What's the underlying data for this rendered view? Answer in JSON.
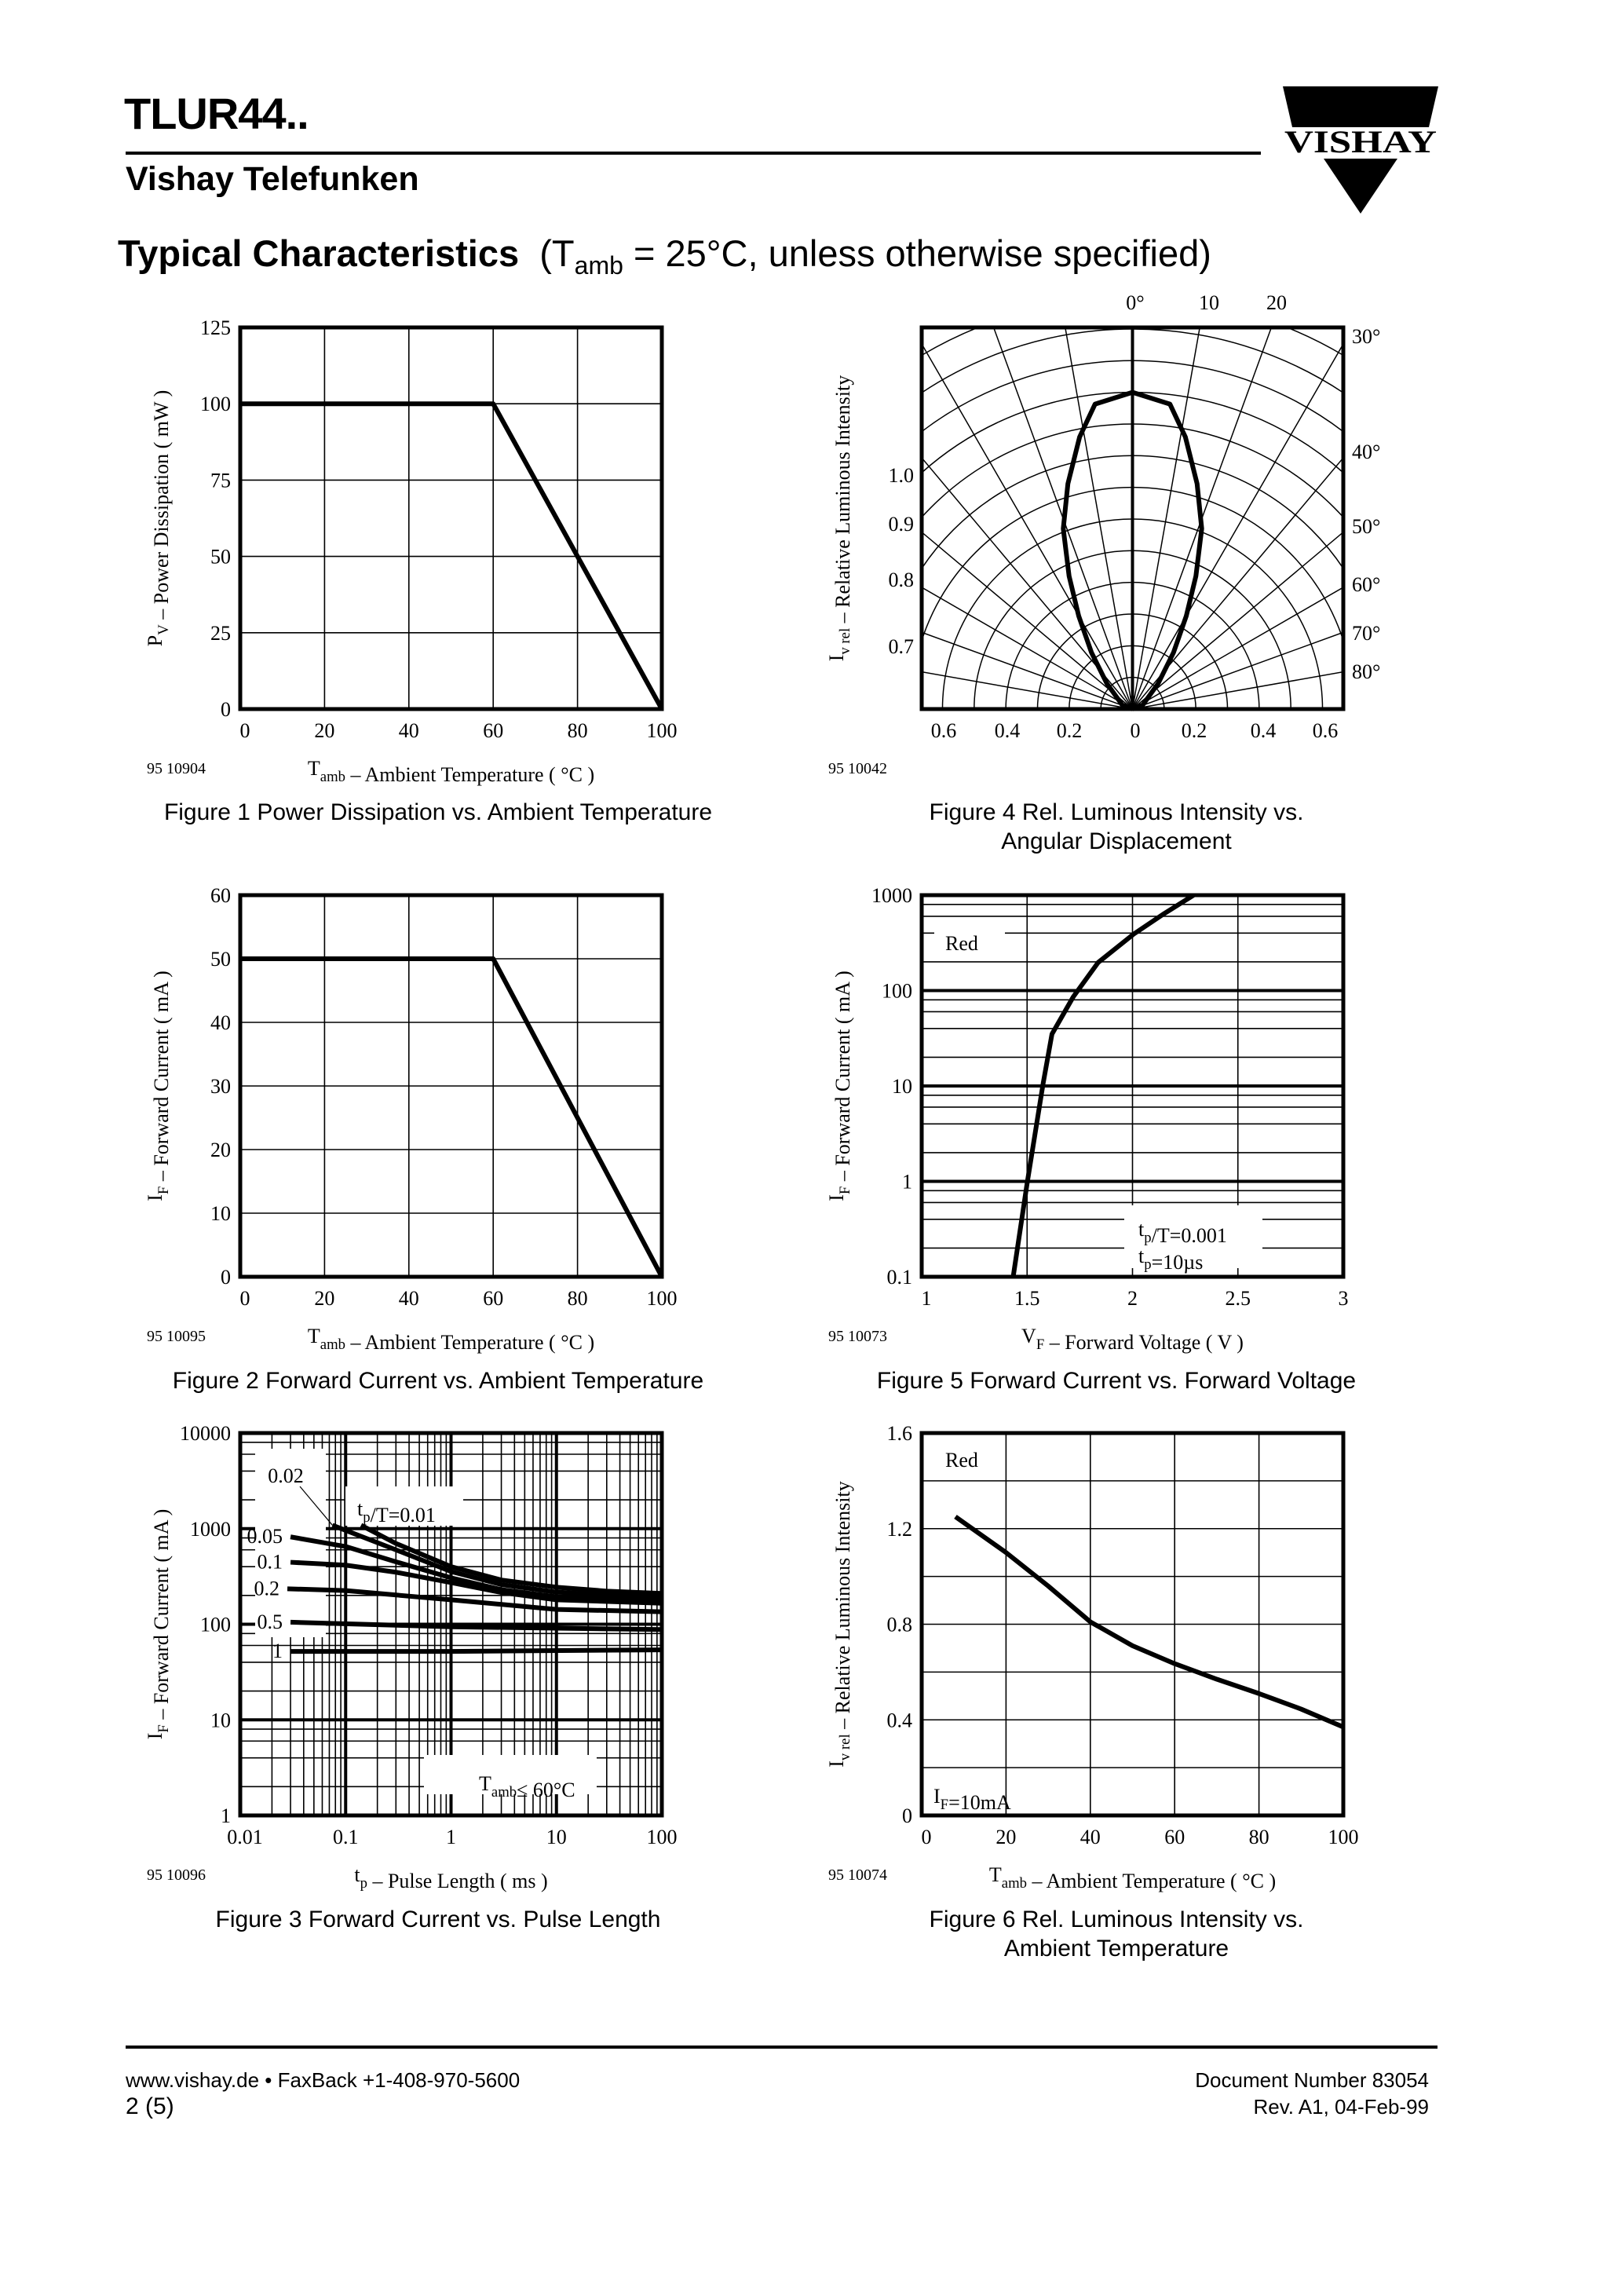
{
  "header": {
    "title": "TLUR44..",
    "company": "Vishay Telefunken",
    "logo_text": "VISHAY",
    "section_title": "Typical Characteristics",
    "section_condition_pre": "(T",
    "section_condition_sub": "amb",
    "section_condition_post": " = 25°C, unless otherwise specified)"
  },
  "captions": {
    "fig1": "Figure 1 Power Dissipation  vs. Ambient Temperature",
    "fig2": "Figure 2 Forward Current vs. Ambient Temperature",
    "fig3": "Figure 3 Forward Current vs. Pulse Length",
    "fig4_line1": "Figure 4 Rel. Luminous Intensity vs.",
    "fig4_line2": "Angular Displacement",
    "fig5": "Figure 5 Forward Current vs. Forward Voltage",
    "fig6_line1": "Figure 6 Rel. Luminous Intensity vs.",
    "fig6_line2": "Ambient Temperature"
  },
  "footer": {
    "website": "www.vishay.de • FaxBack +1-408-970-5600",
    "page": "2 (5)",
    "doc_number": "Document Number 83054",
    "revision": "Rev. A1, 04-Feb-99"
  },
  "chart_data": [
    {
      "type": "line",
      "figure_id": "95 10904",
      "xscale": "linear",
      "yscale": "linear",
      "xlim": [
        0,
        100
      ],
      "ylim": [
        0,
        125
      ],
      "xticks": [
        0,
        20,
        40,
        60,
        80,
        100
      ],
      "xtick_labels": [
        "0",
        "20",
        "40",
        "60",
        "80",
        "100"
      ],
      "yticks": [
        0,
        25,
        50,
        75,
        100,
        125
      ],
      "ytick_labels": [
        "0",
        "25",
        "50",
        "75",
        "100",
        "125"
      ],
      "grid": true,
      "xlabel": [
        {
          "text": "T"
        },
        {
          "text": "amb",
          "sub": true
        },
        {
          "text": " – Ambient Temperature ( °C )"
        }
      ],
      "ylabel": [
        {
          "text": "P"
        },
        {
          "text": "V",
          "sub": true
        },
        {
          "text": " – Power Dissipation ( mW )"
        }
      ],
      "series": [
        {
          "x": [
            0,
            60,
            100
          ],
          "y": [
            100,
            100,
            0
          ]
        }
      ]
    },
    {
      "type": "line",
      "figure_id": "95 10095",
      "xscale": "linear",
      "yscale": "linear",
      "xlim": [
        0,
        100
      ],
      "ylim": [
        0,
        60
      ],
      "xticks": [
        0,
        20,
        40,
        60,
        80,
        100
      ],
      "xtick_labels": [
        "0",
        "20",
        "40",
        "60",
        "80",
        "100"
      ],
      "yticks": [
        0,
        10,
        20,
        30,
        40,
        50,
        60
      ],
      "ytick_labels": [
        "0",
        "10",
        "20",
        "30",
        "40",
        "50",
        "60"
      ],
      "grid": true,
      "xlabel": [
        {
          "text": "T"
        },
        {
          "text": "amb",
          "sub": true
        },
        {
          "text": " – Ambient Temperature ( °C )"
        }
      ],
      "ylabel": [
        {
          "text": "I"
        },
        {
          "text": "F",
          "sub": true
        },
        {
          "text": " – Forward Current ( mA )"
        }
      ],
      "series": [
        {
          "x": [
            0,
            60,
            100
          ],
          "y": [
            50,
            50,
            0
          ]
        }
      ]
    },
    {
      "type": "line",
      "figure_id": "95 10096",
      "xscale": "log",
      "yscale": "log",
      "xlim": [
        0.01,
        100
      ],
      "ylim": [
        1,
        10000
      ],
      "xticks": [
        0.01,
        0.1,
        1,
        10,
        100
      ],
      "xtick_labels": [
        "0.01",
        "0.1",
        "1",
        "10",
        "100"
      ],
      "yticks": [
        1,
        10,
        100,
        1000,
        10000
      ],
      "ytick_labels": [
        "1",
        "10",
        "100",
        "1000",
        "10000"
      ],
      "grid": true,
      "xlabel": [
        {
          "text": "t"
        },
        {
          "text": "p",
          "sub": true
        },
        {
          "text": " – Pulse Length ( ms )"
        }
      ],
      "ylabel": [
        {
          "text": "I"
        },
        {
          "text": "F",
          "sub": true
        },
        {
          "text": " – Forward Current ( mA )"
        }
      ],
      "annotations": [
        [
          {
            "text": "t"
          },
          {
            "text": "p",
            "sub": true
          },
          {
            "text": "/T=0.01"
          }
        ],
        [
          {
            "text": "T"
          },
          {
            "text": "amb",
            "sub": true
          },
          {
            "text": "≤ 60°C"
          }
        ]
      ],
      "series": [
        {
          "x": [
            0.14,
            0.3,
            1,
            3,
            10,
            30,
            100
          ],
          "y": [
            1085,
            700,
            400,
            290,
            244,
            222,
            210
          ]
        },
        {
          "name": "0.02",
          "x": [
            0.075,
            0.3,
            1,
            3,
            10,
            30,
            100
          ],
          "y": [
            1085,
            600,
            356,
            260,
            217,
            202,
            194
          ]
        },
        {
          "name": "0.05",
          "x": [
            0.03,
            0.1,
            0.3,
            1,
            3,
            10,
            100
          ],
          "y": [
            820,
            650,
            450,
            306,
            230,
            194,
            180
          ]
        },
        {
          "name": "0.1",
          "x": [
            0.03,
            0.1,
            0.3,
            1,
            3,
            10,
            100
          ],
          "y": [
            445,
            415,
            350,
            273,
            215,
            180,
            166
          ]
        },
        {
          "name": "0.2",
          "x": [
            0.028,
            0.1,
            1,
            10,
            100
          ],
          "y": [
            235,
            225,
            180,
            143,
            135
          ]
        },
        {
          "name": "0.5",
          "x": [
            0.03,
            1,
            100
          ],
          "y": [
            105,
            94,
            88
          ]
        },
        {
          "name": "1",
          "x": [
            0.03,
            1,
            100
          ],
          "y": [
            52,
            52,
            54
          ]
        }
      ]
    },
    {
      "type": "polar",
      "figure_id": "95 10042",
      "ylabel": [
        {
          "text": "I"
        },
        {
          "text": "v rel",
          "sub": true
        },
        {
          "text": "  – Relative Luminous Intensity"
        }
      ],
      "angle_labels_top": [
        "0°",
        "10",
        "20"
      ],
      "angle_labels_right": [
        "30°",
        "40°",
        "50°",
        "60°",
        "70°",
        "80°"
      ],
      "intensity_labels_left": [
        "1.0",
        "0.9",
        "0.8",
        "0.7"
      ],
      "radius_labels_bottom": [
        "0.6",
        "0.4",
        "0.2",
        "0",
        "0.2",
        "0.4",
        "0.6"
      ],
      "angle_deg": [
        0,
        7,
        11,
        16,
        21,
        25.5,
        30,
        36,
        45,
        68,
        90
      ],
      "relative_intensity": [
        1.0,
        0.97,
        0.875,
        0.74,
        0.61,
        0.465,
        0.34,
        0.22,
        0.115,
        0.035,
        0
      ],
      "symmetric": true
    },
    {
      "type": "line",
      "figure_id": "95 10073",
      "xscale": "linear",
      "yscale": "log",
      "xlim": [
        1,
        3
      ],
      "ylim": [
        0.1,
        1000
      ],
      "xticks": [
        1,
        1.5,
        2,
        2.5,
        3
      ],
      "xtick_labels": [
        "1",
        "1.5",
        "2",
        "2.5",
        "3"
      ],
      "yticks": [
        0.1,
        1,
        10,
        100,
        1000
      ],
      "ytick_labels": [
        "0.1",
        "1",
        "10",
        "100",
        "1000"
      ],
      "grid": true,
      "xlabel": [
        {
          "text": "V"
        },
        {
          "text": "F",
          "sub": true
        },
        {
          "text": " – Forward Voltage ( V )"
        }
      ],
      "ylabel": [
        {
          "text": "I"
        },
        {
          "text": "F",
          "sub": true
        },
        {
          "text": " – Forward Current ( mA )"
        }
      ],
      "annotations": [
        [
          {
            "text": "Red"
          }
        ],
        [
          {
            "text": "t"
          },
          {
            "text": "p",
            "sub": true
          },
          {
            "text": "/T=0.001"
          }
        ],
        [
          {
            "text": "t"
          },
          {
            "text": "p",
            "sub": true
          },
          {
            "text": "=10µs"
          }
        ]
      ],
      "series": [
        {
          "x": [
            1.434,
            1.5,
            1.576,
            1.618,
            1.719,
            1.837,
            2.005,
            2.15,
            2.29
          ],
          "y": [
            0.1,
            0.95,
            10.6,
            35,
            86,
            197,
            390,
            640,
            1000
          ]
        }
      ]
    },
    {
      "type": "line",
      "figure_id": "95 10074",
      "xscale": "linear",
      "yscale": "linear",
      "xlim": [
        0,
        100
      ],
      "ylim": [
        0,
        1.6
      ],
      "xticks": [
        0,
        20,
        40,
        60,
        80,
        100
      ],
      "xtick_labels": [
        "0",
        "20",
        "40",
        "60",
        "80",
        "100"
      ],
      "yticks": [
        0,
        0.4,
        0.8,
        1.2,
        1.6
      ],
      "ytick_labels": [
        "0",
        "0.4",
        "0.8",
        "1.2",
        "1.6"
      ],
      "grid": true,
      "xlabel": [
        {
          "text": "T"
        },
        {
          "text": "amb",
          "sub": true
        },
        {
          "text": " – Ambient Temperature ( °C )"
        }
      ],
      "ylabel": [
        {
          "text": "I"
        },
        {
          "text": "v rel",
          "sub": true
        },
        {
          "text": "  – Relative Luminous Intensity"
        }
      ],
      "annotations": [
        [
          {
            "text": "Red"
          }
        ],
        [
          {
            "text": "I"
          },
          {
            "text": "F",
            "sub": true
          },
          {
            "text": "=10mA"
          }
        ]
      ],
      "series": [
        {
          "x": [
            8,
            20,
            30,
            40,
            50,
            60,
            70,
            80,
            90,
            100
          ],
          "y": [
            1.25,
            1.1,
            0.96,
            0.81,
            0.71,
            0.635,
            0.57,
            0.51,
            0.445,
            0.37
          ]
        }
      ]
    }
  ]
}
